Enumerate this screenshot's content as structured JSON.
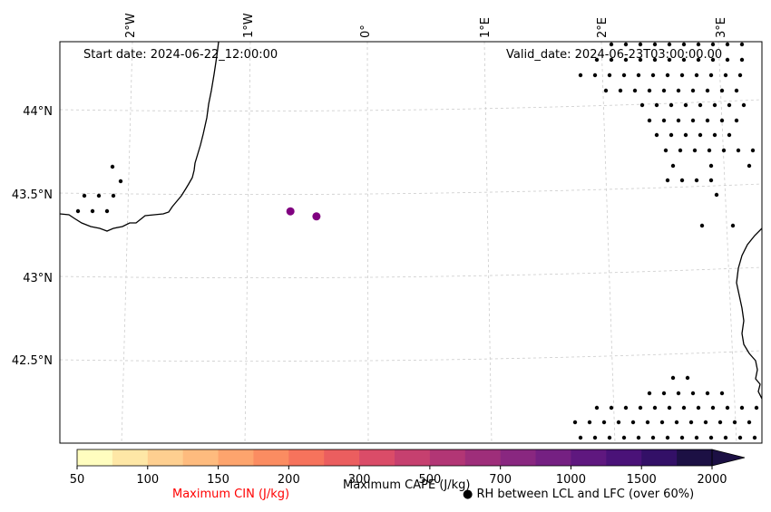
{
  "map": {
    "start_date": "Start date: 2024-06-22_12:00:00",
    "valid_date": "Valid_date: 2024-06-23T03:00:00.00",
    "lon_labels": [
      "2°W",
      "1°W",
      "0°",
      "1°E",
      "2°E",
      "3°E"
    ],
    "lat_labels": [
      "44°N",
      "43.5°N",
      "43°N",
      "42.5°N"
    ],
    "cape_points": [
      {
        "lon": -0.65,
        "lat": 43.39,
        "color": "#800080"
      },
      {
        "lon": -0.43,
        "lat": 43.36,
        "color": "#800080"
      }
    ]
  },
  "colorbar": {
    "title": "Maximum CAPE (J/kg)",
    "ticks": [
      "50",
      "100",
      "150",
      "200",
      "300",
      "500",
      "700",
      "1000",
      "1500",
      "2000"
    ],
    "colors": [
      "#fffdbf",
      "#fee7a6",
      "#fecf90",
      "#febb7e",
      "#fda46d",
      "#fb8c61",
      "#f6735c",
      "#eb5e5f",
      "#da4c68",
      "#c6406f",
      "#b23675",
      "#9e2e7a",
      "#892780",
      "#752082",
      "#5f187f",
      "#4a1278",
      "#331067",
      "#1c1044"
    ],
    "extend_color": "#1c1044"
  },
  "legend": {
    "cin_label": "Maximum CIN (J/kg)",
    "cin_color": "#ff0000",
    "rh_label": "RH between LCL and LFC (over 60%)"
  }
}
